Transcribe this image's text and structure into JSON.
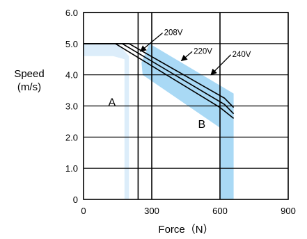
{
  "chart_data": {
    "type": "line",
    "xlabel": "Force（N）",
    "ylabel_lines": [
      "Speed",
      "(m/s)"
    ],
    "xlim": [
      0,
      900
    ],
    "ylim": [
      0,
      6
    ],
    "xticks": [
      0,
      300,
      600,
      900
    ],
    "xtick_labels": [
      "0",
      "300",
      "600",
      "900"
    ],
    "yticks": [
      0,
      1,
      2,
      3,
      4,
      5,
      6
    ],
    "ytick_labels": [
      "0",
      "1.0",
      "2.0",
      "3.0",
      "4.0",
      "5.0",
      "6.0"
    ],
    "grid": true,
    "series": [
      {
        "name": "208V",
        "x": [
          0,
          140,
          600,
          660
        ],
        "y": [
          5.0,
          5.0,
          2.95,
          2.6
        ]
      },
      {
        "name": "220V",
        "x": [
          0,
          170,
          620,
          660
        ],
        "y": [
          5.0,
          5.0,
          3.05,
          2.75
        ]
      },
      {
        "name": "240V",
        "x": [
          0,
          200,
          620,
          660
        ],
        "y": [
          5.0,
          5.0,
          3.25,
          2.95
        ]
      }
    ],
    "regions": [
      {
        "label": "A",
        "label_at": [
          125,
          3.0
        ],
        "color": "#dcedfa",
        "polygon": [
          [
            0,
            5.0
          ],
          [
            150,
            5.0
          ],
          [
            200,
            4.6
          ],
          [
            200,
            0
          ],
          [
            180,
            0
          ],
          [
            180,
            4.5
          ],
          [
            130,
            4.6
          ],
          [
            0,
            4.6
          ]
        ]
      },
      {
        "label": "B",
        "label_at": [
          520,
          2.3
        ],
        "color": "#a9d9f5",
        "polygon": [
          [
            290,
            5.0
          ],
          [
            660,
            3.4
          ],
          [
            660,
            0
          ],
          [
            600,
            0
          ],
          [
            600,
            2.3
          ],
          [
            260,
            4.0
          ],
          [
            255,
            4.4
          ]
        ]
      }
    ],
    "vlines": [
      240,
      300,
      600
    ],
    "annotations": [
      {
        "text": "208V",
        "at": [
          360,
          5.3
        ],
        "arrow_to": [
          250,
          4.75
        ]
      },
      {
        "text": "220V",
        "at": [
          490,
          4.7
        ],
        "arrow_to": [
          430,
          4.45
        ]
      },
      {
        "text": "240V",
        "at": [
          660,
          4.6
        ],
        "arrow_to": [
          560,
          4.0
        ]
      }
    ]
  }
}
